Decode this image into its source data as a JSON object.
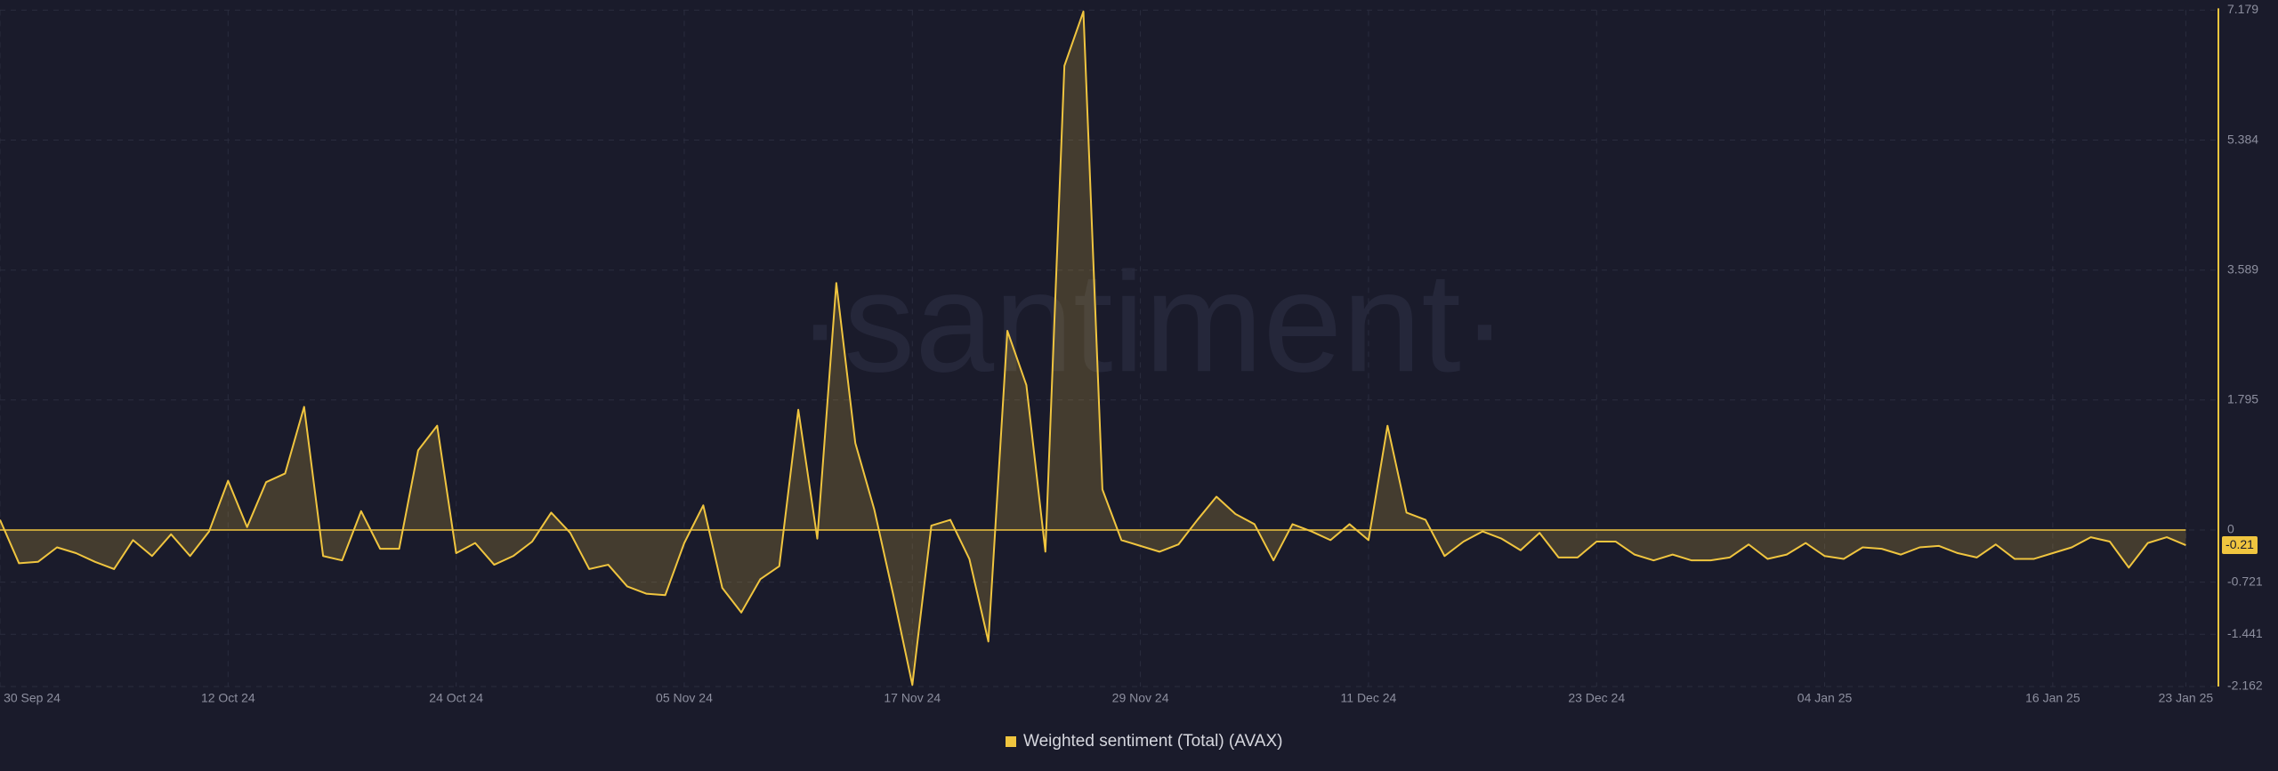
{
  "chart_data": {
    "type": "line",
    "watermark": "·santiment·",
    "categories": [
      "30 Sep 24",
      null,
      null,
      null,
      null,
      null,
      null,
      null,
      null,
      null,
      null,
      null,
      "12 Oct 24",
      null,
      null,
      null,
      null,
      null,
      null,
      null,
      null,
      null,
      null,
      null,
      "24 Oct 24",
      null,
      null,
      null,
      null,
      null,
      null,
      null,
      null,
      null,
      null,
      null,
      "05 Nov 24",
      null,
      null,
      null,
      null,
      null,
      null,
      null,
      null,
      null,
      null,
      null,
      "17 Nov 24",
      null,
      null,
      null,
      null,
      null,
      null,
      null,
      null,
      null,
      null,
      null,
      "29 Nov 24",
      null,
      null,
      null,
      null,
      null,
      null,
      null,
      null,
      null,
      null,
      null,
      "11 Dec 24",
      null,
      null,
      null,
      null,
      null,
      null,
      null,
      null,
      null,
      null,
      null,
      "23 Dec 24",
      null,
      null,
      null,
      null,
      null,
      null,
      null,
      null,
      null,
      null,
      null,
      "04 Jan 25",
      null,
      null,
      null,
      null,
      null,
      null,
      null,
      null,
      null,
      null,
      null,
      "16 Jan 25",
      null,
      null,
      null,
      null,
      null,
      null,
      "23 Jan 25"
    ],
    "series": [
      {
        "name": "Weighted sentiment (Total) (AVAX)",
        "color": "#f0c53f",
        "values": [
          0.14,
          -0.46,
          -0.44,
          -0.24,
          -0.32,
          -0.44,
          -0.54,
          -0.14,
          -0.36,
          -0.06,
          -0.36,
          -0.02,
          0.68,
          0.04,
          0.66,
          0.78,
          1.7,
          -0.36,
          -0.42,
          0.26,
          -0.26,
          -0.26,
          1.1,
          1.44,
          -0.32,
          -0.18,
          -0.48,
          -0.36,
          -0.16,
          0.24,
          -0.04,
          -0.54,
          -0.48,
          -0.78,
          -0.88,
          -0.9,
          -0.18,
          0.34,
          -0.8,
          -1.14,
          -0.68,
          -0.5,
          1.66,
          -0.12,
          3.41,
          1.2,
          0.28,
          -0.9,
          -2.14,
          0.06,
          0.14,
          -0.4,
          -1.54,
          2.75,
          2.0,
          -0.3,
          6.41,
          7.16,
          0.56,
          -0.14,
          -0.22,
          -0.3,
          -0.2,
          0.14,
          0.46,
          0.22,
          0.08,
          -0.42,
          0.08,
          -0.02,
          -0.14,
          0.08,
          -0.14,
          1.44,
          0.24,
          0.14,
          -0.36,
          -0.16,
          -0.02,
          -0.12,
          -0.28,
          -0.04,
          -0.38,
          -0.38,
          -0.16,
          -0.16,
          -0.34,
          -0.42,
          -0.34,
          -0.42,
          -0.42,
          -0.38,
          -0.2,
          -0.4,
          -0.34,
          -0.18,
          -0.36,
          -0.4,
          -0.24,
          -0.26,
          -0.34,
          -0.24,
          -0.22,
          -0.32,
          -0.38,
          -0.2,
          -0.4,
          -0.4,
          -0.32,
          -0.24,
          -0.1,
          -0.16,
          -0.52,
          -0.18,
          -0.1,
          -0.21
        ]
      }
    ],
    "ylim": [
      -2.162,
      7.179
    ],
    "yticks": [
      7.179,
      5.384,
      3.589,
      1.795,
      0,
      -0.721,
      -1.441,
      -2.162
    ],
    "grid": true
  }
}
